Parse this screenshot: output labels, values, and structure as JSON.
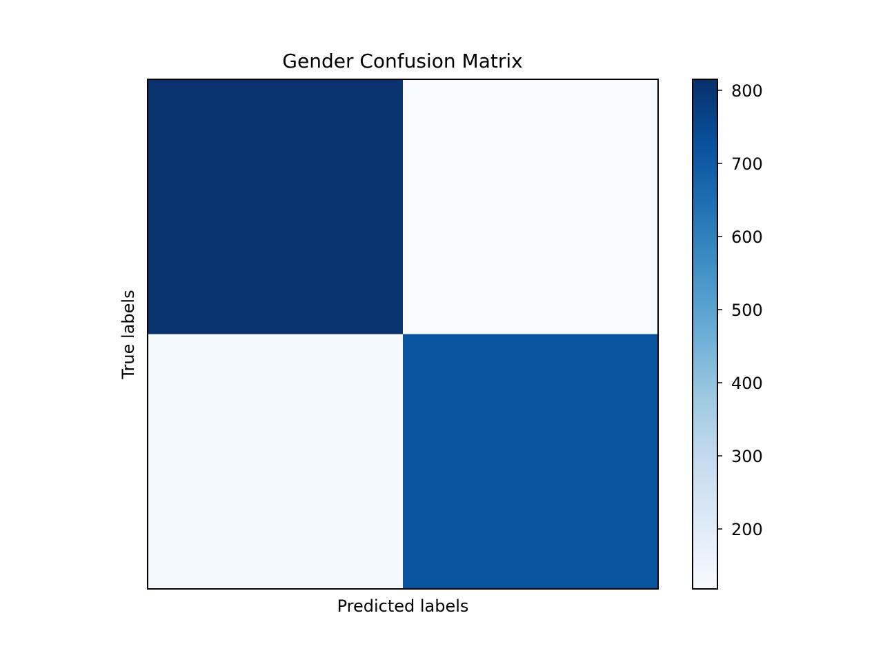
{
  "chart_data": {
    "type": "heatmap",
    "title": "Gender Confusion Matrix",
    "xlabel": "Predicted labels",
    "ylabel": "True labels",
    "rows": 2,
    "cols": 2,
    "values": [
      [
        807,
        118
      ],
      [
        127,
        725
      ]
    ],
    "colormap": "Blues",
    "colorbar": {
      "range": [
        118,
        815
      ],
      "ticks": [
        200,
        300,
        400,
        500,
        600,
        700,
        800
      ]
    },
    "grid": false
  }
}
